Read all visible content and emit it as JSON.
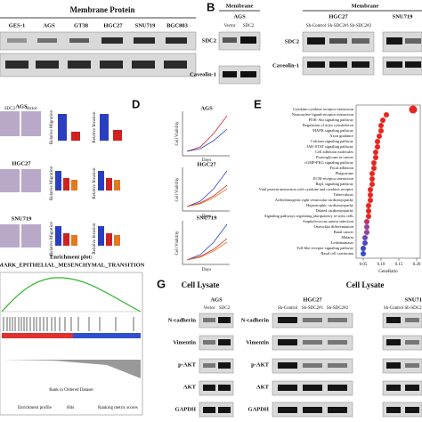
{
  "panel_labels": {
    "b": "B",
    "d": "D",
    "e": "E",
    "g": "G"
  },
  "panel_a": {
    "title": "Membrane Protein",
    "lanes": [
      "GES-1",
      "AGS",
      "GT38",
      "HGC27",
      "SNU719",
      "BGC803"
    ]
  },
  "panel_b": {
    "left": {
      "title": "Membrane",
      "cell_line": "AGS",
      "lanes": [
        "Vector",
        "SDC2"
      ],
      "rows": [
        "SDC2",
        "Caveolin-1"
      ]
    },
    "right": {
      "title": "Membrane",
      "cell_lines": [
        "HGC27",
        "SNU719"
      ],
      "lanes": [
        "Sh-Control",
        "Sh-SDC2#1",
        "Sh-SDC2#2"
      ],
      "rows": [
        "SDC2",
        "Caveolin-1"
      ]
    }
  },
  "panel_c": {
    "cell_lines": [
      "AGS",
      "HGC27",
      "SNU719"
    ],
    "image_labels": [
      "SDC2",
      "Vector"
    ],
    "y_labels": [
      "Relative Migration",
      "Relative Invasion"
    ]
  },
  "panel_d": {
    "titles": [
      "AGS",
      "HGC27",
      "SNU719"
    ],
    "ylabel": "Cell Viability",
    "xlabel": "Days"
  },
  "panel_e": {
    "pathways": [
      "Cytokine-cytokine receptor interaction",
      "Neuroactive ligand-receptor interaction",
      "PI3K-Akt signaling pathway",
      "Regulation of actin cytoskeleton",
      "MAPK signaling pathway",
      "Axon guidance",
      "Calcium signaling pathway",
      "JAK-STAT signaling pathway",
      "Cell adhesion molecules",
      "Proteoglycans in cancer",
      "cGMP-PKG signaling pathway",
      "Focal adhesion",
      "Phagosome",
      "ECM-receptor interaction",
      "Rap1 signaling pathway",
      "Viral protein interaction with cytokine and cytokine receptor",
      "Tuberculosis",
      "Arrhythmogenic right ventricular cardiomyopathy",
      "Hypertrophic cardiomyopathy",
      "Dilated cardiomyopathy",
      "Signaling pathways regulating pluripotency of stem cells",
      "Staphylococcus aureus infection",
      "Osteoclast differentiation",
      "Basal cancer",
      "Malaria",
      "Leishmaniasis",
      "Toll-like receptor signaling pathway",
      "Basal cell carcinoma"
    ],
    "gene_ratio": [
      0.19,
      0.115,
      0.105,
      0.1,
      0.1,
      0.095,
      0.09,
      0.09,
      0.085,
      0.085,
      0.08,
      0.08,
      0.075,
      0.075,
      0.075,
      0.07,
      0.07,
      0.07,
      0.065,
      0.065,
      0.065,
      0.06,
      0.06,
      0.06,
      0.055,
      0.055,
      0.05,
      0.05
    ],
    "colors": [
      "#e8251f",
      "#e8251f",
      "#e8251f",
      "#e8251f",
      "#e8251f",
      "#e8251f",
      "#e8251f",
      "#e8251f",
      "#e8251f",
      "#e8251f",
      "#e8251f",
      "#e8251f",
      "#e8251f",
      "#e8251f",
      "#e8251f",
      "#e8251f",
      "#e8251f",
      "#e8251f",
      "#e8251f",
      "#e8251f",
      "#e8251f",
      "#c0306a",
      "#9b3fa0",
      "#9b3fa0",
      "#6a46b4",
      "#4f4ac4",
      "#3b4bc8",
      "#3b4bc8"
    ],
    "xlim": [
      0.03,
      0.21
    ],
    "xticks": [
      0.05,
      {
        "value": 0.1,
        "label": "0.10"
      },
      0.15,
      {
        "value": 0.2,
        "label": "0.20"
      }
    ],
    "xlabel": "GeneRatio"
  },
  "panel_f": {
    "title": "Enrichment plot:",
    "subtitle": "MARK_EPITHELIAL_MESENCHYMAL_TRANSITION",
    "xlabel": "Rank in Ordered Dataset",
    "legend": [
      "Enrichment profile",
      "Hits",
      "Ranking metric scores"
    ]
  },
  "panel_g": {
    "title_left": "Cell Lysate",
    "title_right": "Cell Lysate",
    "ags": {
      "cell_line": "AGS",
      "lanes": [
        "Vector",
        "SDC2"
      ]
    },
    "hgc27": {
      "cell_line": "HGC27",
      "lanes": [
        "Sh-Control",
        "Sh-SDC2#1",
        "Sh-SDC2#2"
      ]
    },
    "snu": {
      "cell_line": "SNU71",
      "lanes": [
        "Sh-Control",
        "Sh-SDC2"
      ]
    },
    "rows": [
      "N-cadherin",
      "Vimentin",
      "p-AKT",
      "AKT",
      "GAPDH"
    ]
  }
}
